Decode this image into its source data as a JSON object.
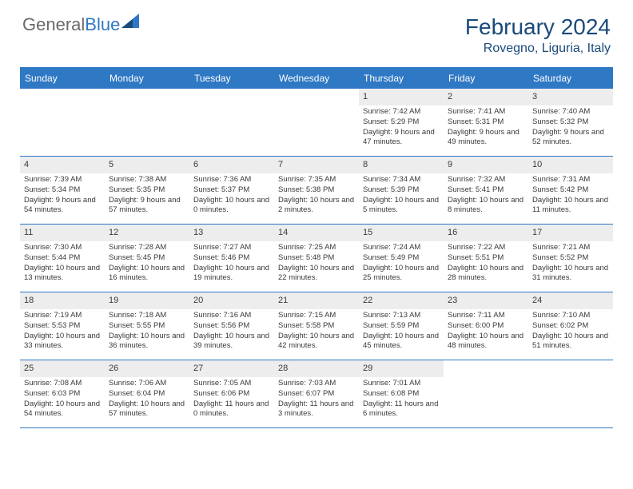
{
  "brand": {
    "part1": "General",
    "part2": "Blue"
  },
  "title": "February 2024",
  "location": "Rovegno, Liguria, Italy",
  "day_headers": [
    "Sunday",
    "Monday",
    "Tuesday",
    "Wednesday",
    "Thursday",
    "Friday",
    "Saturday"
  ],
  "colors": {
    "accent": "#2f78c4",
    "title": "#1a4a7a",
    "daynum_bg": "#ededed",
    "text": "#3a3a3a"
  },
  "weeks": [
    [
      {
        "n": "",
        "sr": "",
        "ss": "",
        "dl": ""
      },
      {
        "n": "",
        "sr": "",
        "ss": "",
        "dl": ""
      },
      {
        "n": "",
        "sr": "",
        "ss": "",
        "dl": ""
      },
      {
        "n": "",
        "sr": "",
        "ss": "",
        "dl": ""
      },
      {
        "n": "1",
        "sr": "Sunrise: 7:42 AM",
        "ss": "Sunset: 5:29 PM",
        "dl": "Daylight: 9 hours and 47 minutes."
      },
      {
        "n": "2",
        "sr": "Sunrise: 7:41 AM",
        "ss": "Sunset: 5:31 PM",
        "dl": "Daylight: 9 hours and 49 minutes."
      },
      {
        "n": "3",
        "sr": "Sunrise: 7:40 AM",
        "ss": "Sunset: 5:32 PM",
        "dl": "Daylight: 9 hours and 52 minutes."
      }
    ],
    [
      {
        "n": "4",
        "sr": "Sunrise: 7:39 AM",
        "ss": "Sunset: 5:34 PM",
        "dl": "Daylight: 9 hours and 54 minutes."
      },
      {
        "n": "5",
        "sr": "Sunrise: 7:38 AM",
        "ss": "Sunset: 5:35 PM",
        "dl": "Daylight: 9 hours and 57 minutes."
      },
      {
        "n": "6",
        "sr": "Sunrise: 7:36 AM",
        "ss": "Sunset: 5:37 PM",
        "dl": "Daylight: 10 hours and 0 minutes."
      },
      {
        "n": "7",
        "sr": "Sunrise: 7:35 AM",
        "ss": "Sunset: 5:38 PM",
        "dl": "Daylight: 10 hours and 2 minutes."
      },
      {
        "n": "8",
        "sr": "Sunrise: 7:34 AM",
        "ss": "Sunset: 5:39 PM",
        "dl": "Daylight: 10 hours and 5 minutes."
      },
      {
        "n": "9",
        "sr": "Sunrise: 7:32 AM",
        "ss": "Sunset: 5:41 PM",
        "dl": "Daylight: 10 hours and 8 minutes."
      },
      {
        "n": "10",
        "sr": "Sunrise: 7:31 AM",
        "ss": "Sunset: 5:42 PM",
        "dl": "Daylight: 10 hours and 11 minutes."
      }
    ],
    [
      {
        "n": "11",
        "sr": "Sunrise: 7:30 AM",
        "ss": "Sunset: 5:44 PM",
        "dl": "Daylight: 10 hours and 13 minutes."
      },
      {
        "n": "12",
        "sr": "Sunrise: 7:28 AM",
        "ss": "Sunset: 5:45 PM",
        "dl": "Daylight: 10 hours and 16 minutes."
      },
      {
        "n": "13",
        "sr": "Sunrise: 7:27 AM",
        "ss": "Sunset: 5:46 PM",
        "dl": "Daylight: 10 hours and 19 minutes."
      },
      {
        "n": "14",
        "sr": "Sunrise: 7:25 AM",
        "ss": "Sunset: 5:48 PM",
        "dl": "Daylight: 10 hours and 22 minutes."
      },
      {
        "n": "15",
        "sr": "Sunrise: 7:24 AM",
        "ss": "Sunset: 5:49 PM",
        "dl": "Daylight: 10 hours and 25 minutes."
      },
      {
        "n": "16",
        "sr": "Sunrise: 7:22 AM",
        "ss": "Sunset: 5:51 PM",
        "dl": "Daylight: 10 hours and 28 minutes."
      },
      {
        "n": "17",
        "sr": "Sunrise: 7:21 AM",
        "ss": "Sunset: 5:52 PM",
        "dl": "Daylight: 10 hours and 31 minutes."
      }
    ],
    [
      {
        "n": "18",
        "sr": "Sunrise: 7:19 AM",
        "ss": "Sunset: 5:53 PM",
        "dl": "Daylight: 10 hours and 33 minutes."
      },
      {
        "n": "19",
        "sr": "Sunrise: 7:18 AM",
        "ss": "Sunset: 5:55 PM",
        "dl": "Daylight: 10 hours and 36 minutes."
      },
      {
        "n": "20",
        "sr": "Sunrise: 7:16 AM",
        "ss": "Sunset: 5:56 PM",
        "dl": "Daylight: 10 hours and 39 minutes."
      },
      {
        "n": "21",
        "sr": "Sunrise: 7:15 AM",
        "ss": "Sunset: 5:58 PM",
        "dl": "Daylight: 10 hours and 42 minutes."
      },
      {
        "n": "22",
        "sr": "Sunrise: 7:13 AM",
        "ss": "Sunset: 5:59 PM",
        "dl": "Daylight: 10 hours and 45 minutes."
      },
      {
        "n": "23",
        "sr": "Sunrise: 7:11 AM",
        "ss": "Sunset: 6:00 PM",
        "dl": "Daylight: 10 hours and 48 minutes."
      },
      {
        "n": "24",
        "sr": "Sunrise: 7:10 AM",
        "ss": "Sunset: 6:02 PM",
        "dl": "Daylight: 10 hours and 51 minutes."
      }
    ],
    [
      {
        "n": "25",
        "sr": "Sunrise: 7:08 AM",
        "ss": "Sunset: 6:03 PM",
        "dl": "Daylight: 10 hours and 54 minutes."
      },
      {
        "n": "26",
        "sr": "Sunrise: 7:06 AM",
        "ss": "Sunset: 6:04 PM",
        "dl": "Daylight: 10 hours and 57 minutes."
      },
      {
        "n": "27",
        "sr": "Sunrise: 7:05 AM",
        "ss": "Sunset: 6:06 PM",
        "dl": "Daylight: 11 hours and 0 minutes."
      },
      {
        "n": "28",
        "sr": "Sunrise: 7:03 AM",
        "ss": "Sunset: 6:07 PM",
        "dl": "Daylight: 11 hours and 3 minutes."
      },
      {
        "n": "29",
        "sr": "Sunrise: 7:01 AM",
        "ss": "Sunset: 6:08 PM",
        "dl": "Daylight: 11 hours and 6 minutes."
      },
      {
        "n": "",
        "sr": "",
        "ss": "",
        "dl": ""
      },
      {
        "n": "",
        "sr": "",
        "ss": "",
        "dl": ""
      }
    ]
  ]
}
